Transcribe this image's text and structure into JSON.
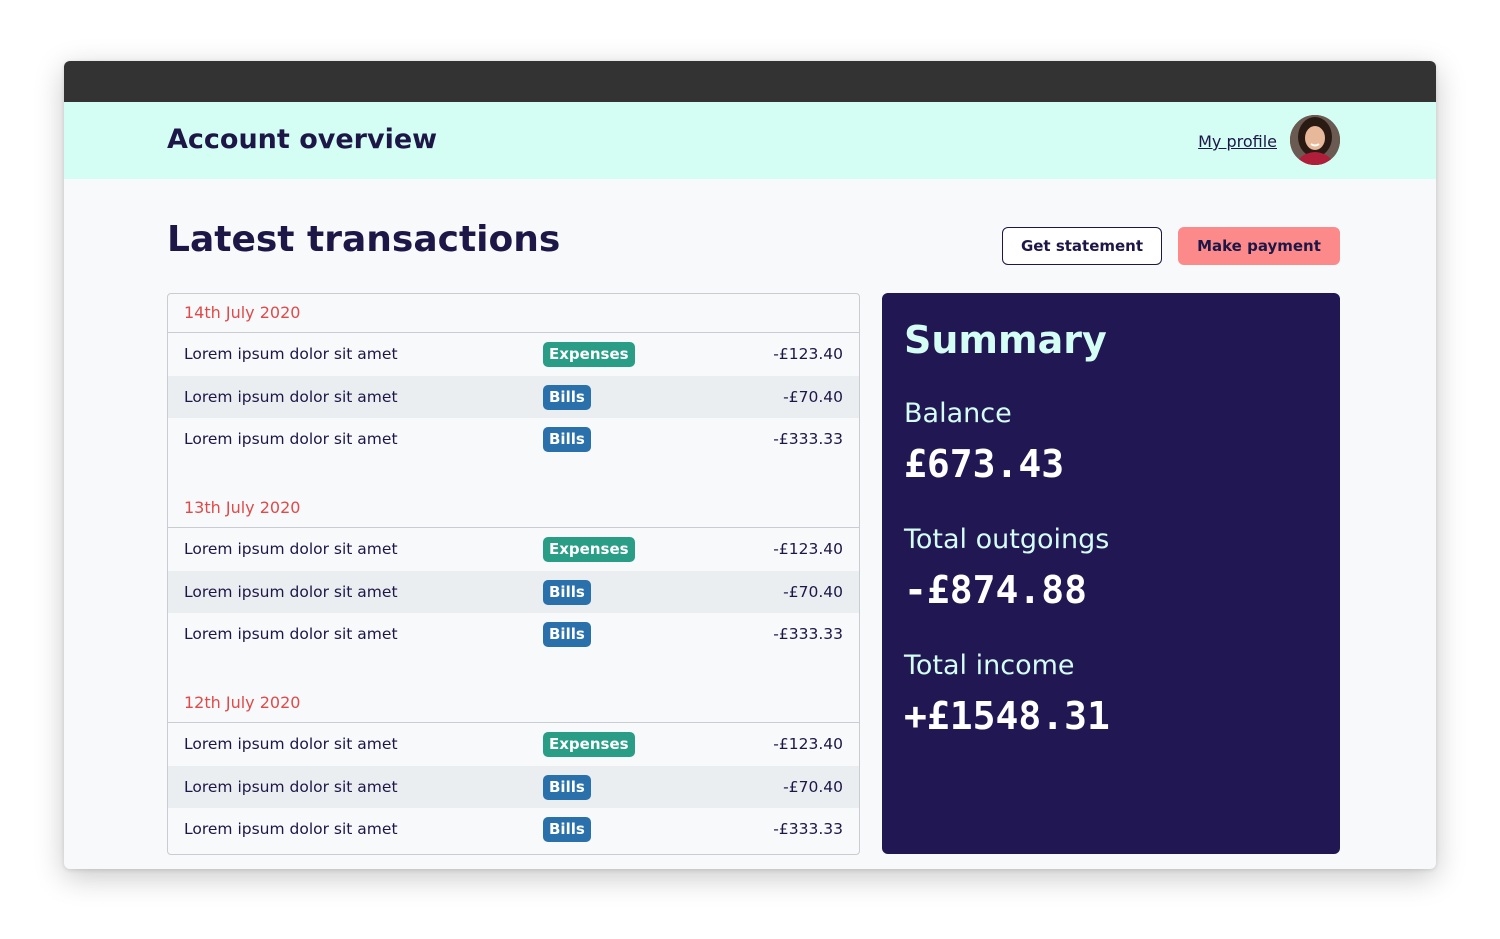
{
  "header": {
    "title": "Account overview",
    "profile_link": "My profile"
  },
  "main": {
    "title": "Latest transactions",
    "get_statement_label": "Get statement",
    "make_payment_label": "Make payment"
  },
  "transactions": [
    {
      "date": "14th July 2020",
      "rows": [
        {
          "description": "Lorem ipsum dolor sit amet",
          "category": "Expenses",
          "amount": "-£123.40"
        },
        {
          "description": "Lorem ipsum dolor sit amet",
          "category": "Bills",
          "amount": "-£70.40"
        },
        {
          "description": "Lorem ipsum dolor sit amet",
          "category": "Bills",
          "amount": "-£333.33"
        }
      ]
    },
    {
      "date": "13th July 2020",
      "rows": [
        {
          "description": "Lorem ipsum dolor sit amet",
          "category": "Expenses",
          "amount": "-£123.40"
        },
        {
          "description": "Lorem ipsum dolor sit amet",
          "category": "Bills",
          "amount": "-£70.40"
        },
        {
          "description": "Lorem ipsum dolor sit amet",
          "category": "Bills",
          "amount": "-£333.33"
        }
      ]
    },
    {
      "date": "12th July 2020",
      "rows": [
        {
          "description": "Lorem ipsum dolor sit amet",
          "category": "Expenses",
          "amount": "-£123.40"
        },
        {
          "description": "Lorem ipsum dolor sit amet",
          "category": "Bills",
          "amount": "-£70.40"
        },
        {
          "description": "Lorem ipsum dolor sit amet",
          "category": "Bills",
          "amount": "-£333.33"
        }
      ]
    }
  ],
  "summary": {
    "title": "Summary",
    "balance_label": "Balance",
    "balance_value": "£673.43",
    "outgoings_label": "Total outgoings",
    "outgoings_value": "-£874.88",
    "income_label": "Total income",
    "income_value": "+£1548.31"
  },
  "colors": {
    "navy": "#1d1747",
    "summary_bg": "#211752",
    "header_bg": "#d4fdf3",
    "accent_red": "#e04a4a",
    "payment_button": "#fd8a8a",
    "expenses_badge": "#2a9d86",
    "bills_badge": "#2a71ab"
  }
}
